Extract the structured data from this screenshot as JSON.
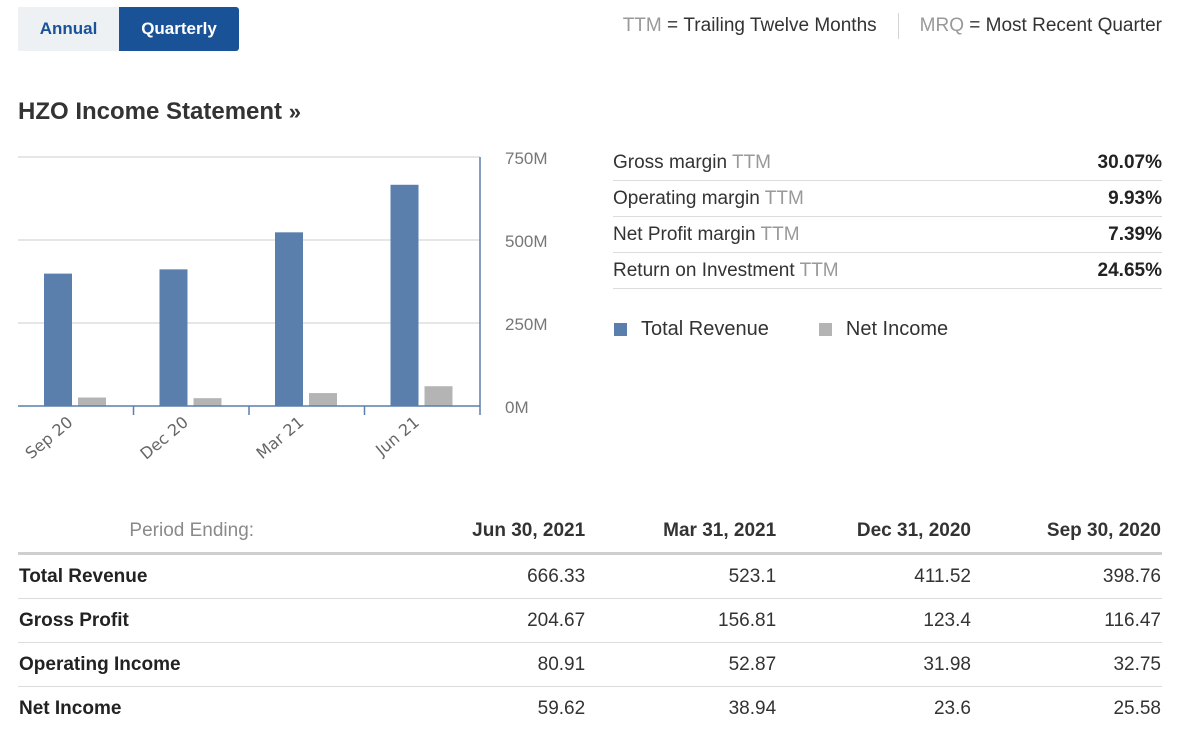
{
  "toggle": {
    "annual": "Annual",
    "quarterly": "Quarterly",
    "selected": "Quarterly"
  },
  "abbrev": {
    "ttm_short": "TTM",
    "ttm_eq": "=",
    "ttm_long": "Trailing Twelve Months",
    "mrq_short": "MRQ",
    "mrq_eq": "=",
    "mrq_long": "Most Recent Quarter"
  },
  "title": {
    "text": "HZO Income Statement",
    "suffix": "»"
  },
  "metrics": [
    {
      "label": "Gross margin",
      "tag": "TTM",
      "value": "30.07%"
    },
    {
      "label": "Operating margin",
      "tag": "TTM",
      "value": "9.93%"
    },
    {
      "label": "Net Profit margin",
      "tag": "TTM",
      "value": "7.39%"
    },
    {
      "label": "Return on Investment",
      "tag": "TTM",
      "value": "24.65%"
    }
  ],
  "chart_data": {
    "type": "bar",
    "categories": [
      "Sep 20",
      "Dec 20",
      "Mar 21",
      "Jun 21"
    ],
    "series": [
      {
        "name": "Total Revenue",
        "color": "#5b7fac",
        "values": [
          398.76,
          411.52,
          523.1,
          666.33
        ]
      },
      {
        "name": "Net Income",
        "color": "#b4b4b4",
        "values": [
          25.58,
          23.6,
          38.94,
          59.62
        ]
      }
    ],
    "ylim": [
      0,
      750
    ],
    "yticks": [
      0,
      250,
      500,
      750
    ],
    "ytick_labels": [
      "0M",
      "250M",
      "500M",
      "750M"
    ],
    "yaxis_position": "right",
    "grid": true,
    "title": "",
    "xlabel": "",
    "ylabel": ""
  },
  "table": {
    "period_label": "Period Ending:",
    "columns": [
      "Jun 30, 2021",
      "Mar 31, 2021",
      "Dec 31, 2020",
      "Sep 30, 2020"
    ],
    "rows": [
      {
        "label": "Total Revenue",
        "values": [
          "666.33",
          "523.1",
          "411.52",
          "398.76"
        ]
      },
      {
        "label": "Gross Profit",
        "values": [
          "204.67",
          "156.81",
          "123.4",
          "116.47"
        ]
      },
      {
        "label": "Operating Income",
        "values": [
          "80.91",
          "52.87",
          "31.98",
          "32.75"
        ]
      },
      {
        "label": "Net Income",
        "values": [
          "59.62",
          "38.94",
          "23.6",
          "25.58"
        ]
      }
    ]
  }
}
